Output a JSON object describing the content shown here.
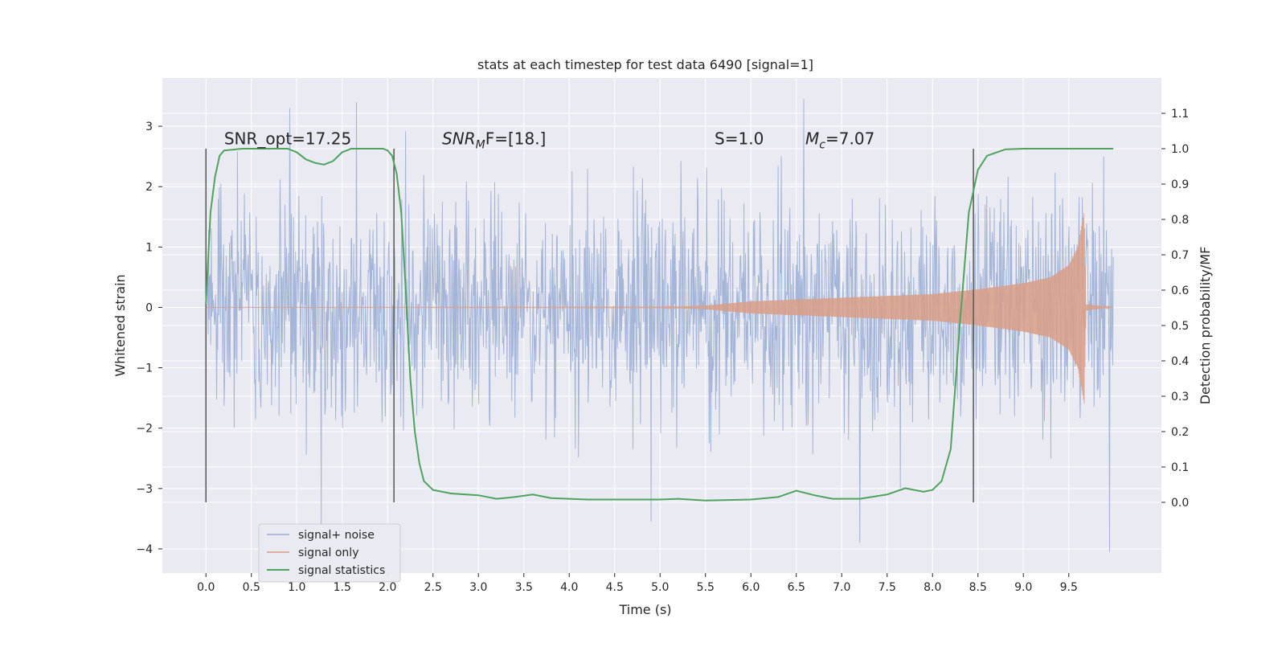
{
  "chart_data": {
    "type": "line",
    "title": "stats at each timestep for test data 6490 [signal=1]",
    "xlabel": "Time (s)",
    "ylabel": "Whitened strain",
    "ylabel_right": "Detection probability/MF",
    "xlim": [
      -0.48,
      10.52
    ],
    "ylim": [
      -4.4,
      3.8
    ],
    "ylim_right": [
      -0.2,
      1.2
    ],
    "x_ticks": [
      "0.0",
      "0.5",
      "1.0",
      "1.5",
      "2.0",
      "2.5",
      "3.0",
      "3.5",
      "4.0",
      "4.5",
      "5.0",
      "5.5",
      "6.0",
      "6.5",
      "7.0",
      "7.5",
      "8.0",
      "8.5",
      "9.0",
      "9.5"
    ],
    "y_ticks_left": [
      "−4",
      "−3",
      "−2",
      "−1",
      "0",
      "1",
      "2",
      "3"
    ],
    "y_ticks_right": [
      "0.0",
      "0.1",
      "0.2",
      "0.3",
      "0.4",
      "0.5",
      "0.6",
      "0.7",
      "0.8",
      "0.9",
      "1.0",
      "1.1"
    ],
    "grid": true,
    "legend_position": "lower-left",
    "annotations": [
      {
        "label": "SNR_opt=17.25",
        "x": 0.2,
        "y": 2.7
      },
      {
        "label_main": "SNR",
        "label_sub": "M",
        "label_tail": "F=[18.]",
        "x": 2.6,
        "y": 2.7
      },
      {
        "label": "S=1.0",
        "x": 5.6,
        "y": 2.7
      },
      {
        "label_main": "M",
        "label_sub": "c",
        "label_tail": "=7.07",
        "x": 6.6,
        "y": 2.7
      }
    ],
    "vertical_markers": [
      0.0,
      2.07,
      8.45
    ],
    "series": [
      {
        "name": "signal+ noise",
        "color": "#98abd2",
        "x_range": [
          0.0,
          9.99
        ],
        "noise_std": 0.92,
        "extremes": [
          {
            "x": 0.92,
            "y": 3.3
          },
          {
            "x": 1.66,
            "y": 3.4
          },
          {
            "x": 6.58,
            "y": 3.45
          },
          {
            "x": 1.27,
            "y": -3.6
          },
          {
            "x": 4.9,
            "y": -3.55
          },
          {
            "x": 7.2,
            "y": -3.9
          },
          {
            "x": 9.95,
            "y": -4.05
          }
        ]
      },
      {
        "name": "signal only",
        "color": "#d99d86",
        "x_range": [
          0.0,
          9.99
        ],
        "envelope": [
          {
            "x": 0.0,
            "amp": 0.0
          },
          {
            "x": 5.0,
            "amp": 0.005
          },
          {
            "x": 5.5,
            "amp": 0.03
          },
          {
            "x": 6.0,
            "amp": 0.1
          },
          {
            "x": 7.0,
            "amp": 0.16
          },
          {
            "x": 8.0,
            "amp": 0.22
          },
          {
            "x": 8.5,
            "amp": 0.3
          },
          {
            "x": 9.0,
            "amp": 0.4
          },
          {
            "x": 9.3,
            "amp": 0.5
          },
          {
            "x": 9.5,
            "amp": 0.7
          },
          {
            "x": 9.6,
            "amp": 1.0
          },
          {
            "x": 9.67,
            "amp": 1.6
          },
          {
            "x": 9.69,
            "amp": 0.05
          },
          {
            "x": 9.99,
            "amp": 0.0
          }
        ]
      },
      {
        "name": "signal statistics",
        "color": "#4fa35f",
        "axis": "right",
        "points": [
          [
            0.0,
            0.56
          ],
          [
            0.05,
            0.82
          ],
          [
            0.1,
            0.92
          ],
          [
            0.15,
            0.98
          ],
          [
            0.2,
            0.995
          ],
          [
            0.4,
            1.0
          ],
          [
            0.9,
            1.0
          ],
          [
            1.0,
            0.99
          ],
          [
            1.1,
            0.97
          ],
          [
            1.2,
            0.96
          ],
          [
            1.3,
            0.955
          ],
          [
            1.4,
            0.965
          ],
          [
            1.5,
            0.99
          ],
          [
            1.6,
            1.0
          ],
          [
            1.95,
            1.0
          ],
          [
            2.0,
            0.995
          ],
          [
            2.05,
            0.98
          ],
          [
            2.1,
            0.93
          ],
          [
            2.15,
            0.82
          ],
          [
            2.2,
            0.6
          ],
          [
            2.25,
            0.35
          ],
          [
            2.3,
            0.2
          ],
          [
            2.35,
            0.11
          ],
          [
            2.4,
            0.06
          ],
          [
            2.5,
            0.035
          ],
          [
            2.7,
            0.025
          ],
          [
            3.0,
            0.02
          ],
          [
            3.2,
            0.01
          ],
          [
            3.4,
            0.015
          ],
          [
            3.6,
            0.022
          ],
          [
            3.8,
            0.012
          ],
          [
            4.2,
            0.008
          ],
          [
            5.0,
            0.008
          ],
          [
            5.2,
            0.01
          ],
          [
            5.5,
            0.005
          ],
          [
            6.0,
            0.008
          ],
          [
            6.3,
            0.015
          ],
          [
            6.5,
            0.033
          ],
          [
            6.7,
            0.02
          ],
          [
            6.9,
            0.01
          ],
          [
            7.2,
            0.01
          ],
          [
            7.5,
            0.022
          ],
          [
            7.7,
            0.04
          ],
          [
            7.8,
            0.035
          ],
          [
            7.9,
            0.03
          ],
          [
            8.0,
            0.035
          ],
          [
            8.1,
            0.06
          ],
          [
            8.2,
            0.15
          ],
          [
            8.3,
            0.5
          ],
          [
            8.4,
            0.82
          ],
          [
            8.5,
            0.94
          ],
          [
            8.6,
            0.98
          ],
          [
            8.8,
            0.998
          ],
          [
            9.0,
            1.0
          ],
          [
            9.99,
            1.0
          ]
        ]
      }
    ]
  }
}
